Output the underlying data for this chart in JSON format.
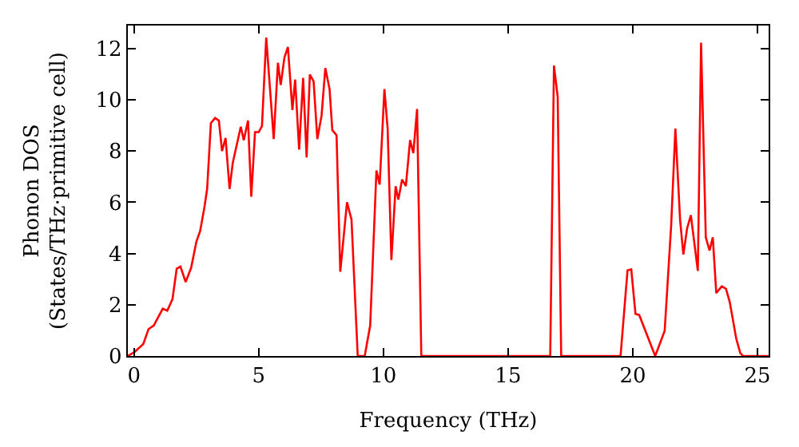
{
  "chart_data": {
    "type": "line",
    "xlabel": "Frequency (THz)",
    "ylabel": "Phonon DOS\n(States/THz·primitive cell)",
    "xlim": [
      -0.25,
      25.45
    ],
    "ylim": [
      0,
      12.9
    ],
    "xticks": [
      0,
      5,
      10,
      15,
      20,
      25
    ],
    "yticks": [
      0,
      2,
      4,
      6,
      8,
      10,
      12
    ],
    "marker": "none",
    "line_style": "solid",
    "x": [
      -0.25,
      0.04,
      0.37,
      0.58,
      0.79,
      1.15,
      1.33,
      1.54,
      1.71,
      1.86,
      2.07,
      2.29,
      2.5,
      2.65,
      2.82,
      2.93,
      3.08,
      3.25,
      3.4,
      3.53,
      3.67,
      3.83,
      3.96,
      4.28,
      4.4,
      4.57,
      4.7,
      4.85,
      5.0,
      5.13,
      5.3,
      5.6,
      5.77,
      5.88,
      6.03,
      6.17,
      6.35,
      6.46,
      6.62,
      6.78,
      6.92,
      7.05,
      7.2,
      7.35,
      7.52,
      7.67,
      7.84,
      7.95,
      8.12,
      8.27,
      8.54,
      8.72,
      8.97,
      9.25,
      9.47,
      9.72,
      9.85,
      10.04,
      10.17,
      10.32,
      10.49,
      10.6,
      10.75,
      10.9,
      11.07,
      11.2,
      11.35,
      11.52,
      16.69,
      16.84,
      16.99,
      17.13,
      19.51,
      19.79,
      19.94,
      20.11,
      20.26,
      20.9,
      21.28,
      21.54,
      21.71,
      21.9,
      22.03,
      22.18,
      22.33,
      22.61,
      22.74,
      22.93,
      23.08,
      23.21,
      23.35,
      23.57,
      23.74,
      23.89,
      24.15,
      24.31,
      24.42,
      25.45
    ],
    "series": [
      {
        "color": "#ff0000",
        "values": [
          0,
          0.17,
          0.47,
          1.05,
          1.19,
          1.85,
          1.77,
          2.22,
          3.41,
          3.49,
          2.89,
          3.45,
          4.47,
          4.88,
          5.8,
          6.52,
          9.09,
          9.29,
          9.19,
          8.0,
          8.51,
          6.52,
          7.55,
          8.95,
          8.42,
          9.19,
          6.22,
          8.74,
          8.74,
          8.98,
          12.43,
          8.47,
          11.45,
          10.58,
          11.65,
          12.06,
          9.6,
          10.79,
          8.06,
          10.86,
          7.75,
          10.99,
          10.72,
          8.47,
          9.39,
          11.24,
          10.42,
          8.82,
          8.62,
          3.29,
          6.0,
          5.33,
          0,
          0,
          1.19,
          7.24,
          6.69,
          10.42,
          8.88,
          3.75,
          6.63,
          6.11,
          6.89,
          6.63,
          8.43,
          7.92,
          9.64,
          0,
          0,
          11.34,
          10.11,
          0,
          0,
          3.34,
          3.38,
          1.64,
          1.6,
          0,
          0.98,
          5.09,
          8.88,
          5.29,
          3.96,
          4.98,
          5.5,
          3.32,
          12.23,
          4.63,
          4.12,
          4.63,
          2.46,
          2.72,
          2.62,
          2.11,
          0.68,
          0.12,
          0,
          0
        ]
      }
    ]
  }
}
